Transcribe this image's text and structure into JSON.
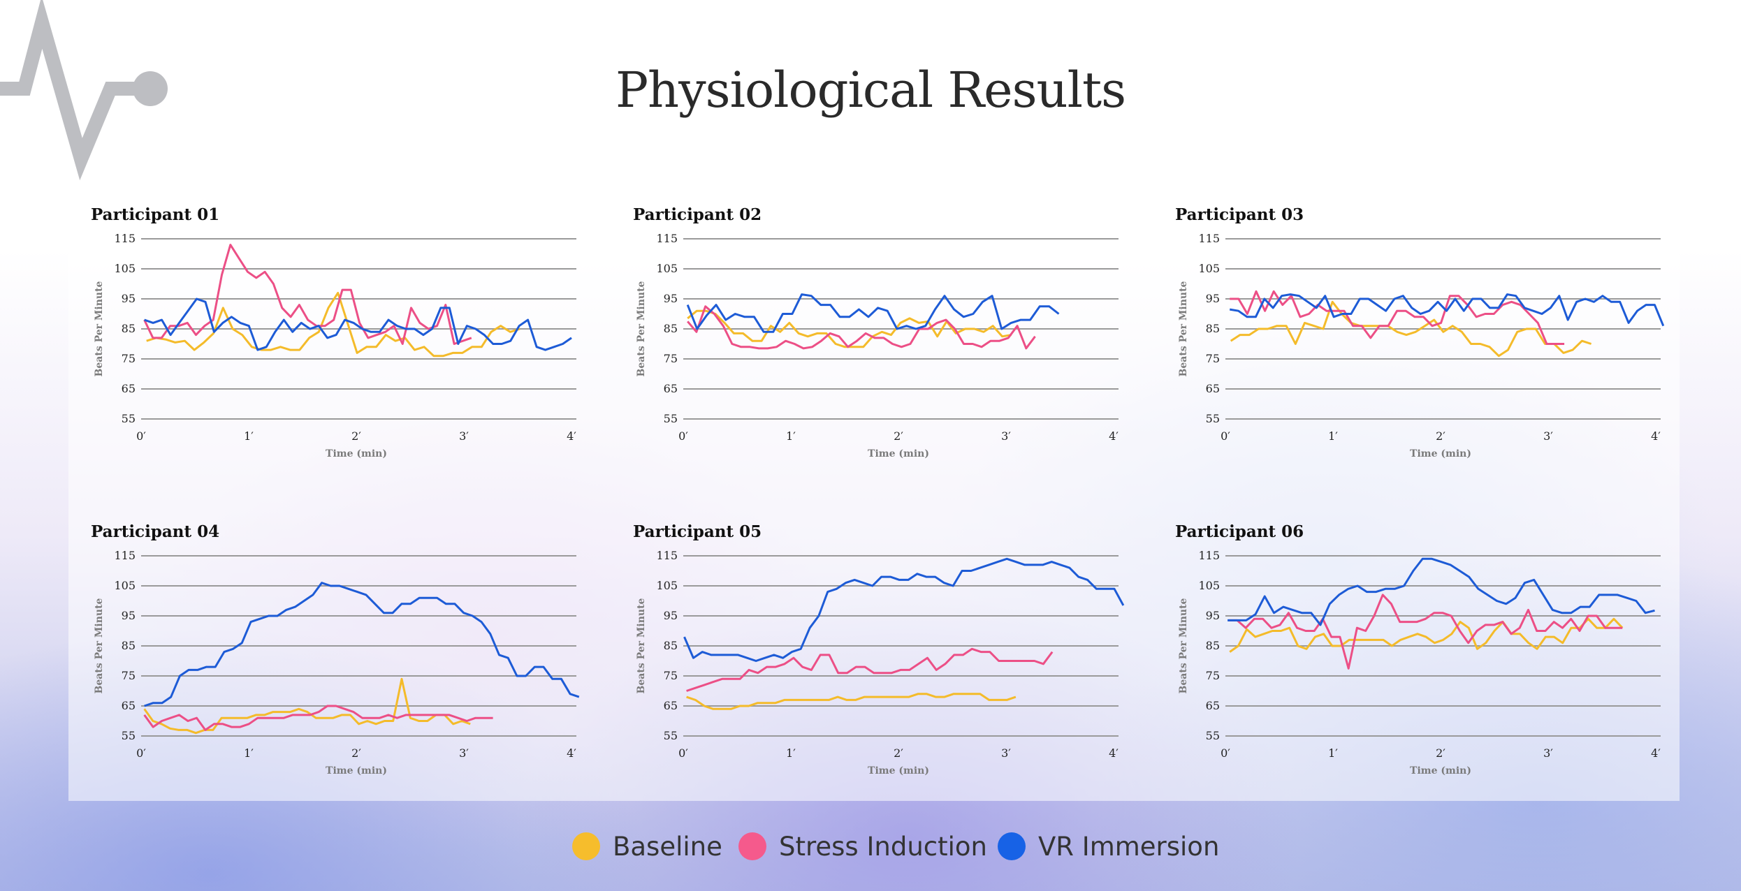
{
  "title": "Physiological Results",
  "colors": {
    "Baseline": "#F4BB2A",
    "Stress Induction": "#EC4F86",
    "VR Immersion": "#1D5BD6",
    "logo": "#BDBEC2"
  },
  "legend": [
    {
      "label": "Baseline",
      "color": "#F6BD2C"
    },
    {
      "label": "Stress Induction",
      "color": "#F55A8C"
    },
    {
      "label": "VR Immersion",
      "color": "#1762E6"
    }
  ],
  "chart_data": [
    {
      "type": "line",
      "title": "Participant 01",
      "xlabel": "Time (min)",
      "ylabel": "Beats Per Minute",
      "xlim": [
        0,
        4
      ],
      "ylim": [
        55,
        115
      ],
      "yticks": [
        55,
        65,
        75,
        85,
        95,
        105,
        115
      ],
      "xticks": [
        "0′",
        "1′",
        "2′",
        "3′",
        "4′"
      ],
      "grid": "horizontal",
      "series": [
        {
          "name": "Baseline",
          "t_range": [
            0.05,
            3.52
          ],
          "bpm": [
            81,
            82,
            81.5,
            80.5,
            81,
            78,
            80.5,
            83.5,
            92,
            85,
            83,
            79,
            78,
            78,
            79,
            78,
            78,
            82,
            84,
            92,
            97,
            87,
            77,
            79,
            79,
            83,
            81,
            82,
            78,
            79,
            76,
            76,
            77,
            77,
            79,
            79,
            84,
            86,
            84,
            85
          ]
        },
        {
          "name": "Stress Induction",
          "t_range": [
            0.03,
            3.07
          ],
          "bpm": [
            88,
            82,
            82,
            86,
            86,
            87,
            83,
            86,
            88,
            103,
            113,
            108.5,
            104,
            102,
            104,
            100,
            92,
            89,
            93,
            88,
            86,
            86,
            88,
            98,
            98,
            87,
            82,
            83,
            84,
            86,
            80,
            92,
            87,
            85,
            86,
            93,
            80,
            81,
            82
          ]
        },
        {
          "name": "VR Immersion",
          "t_range": [
            0.03,
            4.0
          ],
          "bpm": [
            88,
            87,
            88,
            83,
            87,
            91,
            95,
            94,
            84,
            87,
            89,
            87,
            86,
            78,
            79,
            84,
            88,
            84,
            87,
            85,
            86,
            82,
            83,
            88,
            87,
            85,
            84,
            84,
            88,
            86,
            85,
            85,
            83,
            85,
            92,
            92,
            80,
            86,
            85,
            83,
            80,
            80,
            81,
            86,
            88,
            79,
            78,
            79,
            80,
            82
          ]
        }
      ]
    },
    {
      "type": "line",
      "title": "Participant 02",
      "xlabel": "Time (min)",
      "ylabel": "Beats Per Minute",
      "xlim": [
        0,
        4
      ],
      "ylim": [
        55,
        115
      ],
      "yticks": [
        55,
        65,
        75,
        85,
        95,
        105,
        115
      ],
      "xticks": [
        "0′",
        "1′",
        "2′",
        "3′",
        "4′"
      ],
      "grid": "horizontal",
      "series": [
        {
          "name": "Baseline",
          "t_range": [
            0.04,
            3.05
          ],
          "bpm": [
            88.5,
            91,
            91,
            90,
            87,
            83.5,
            83.5,
            81,
            81,
            86,
            84,
            87,
            83.5,
            82.5,
            83.5,
            83.5,
            80,
            79,
            79,
            79,
            82.5,
            84,
            83,
            87,
            88.5,
            87,
            87.5,
            82.5,
            87.5,
            83.5,
            85,
            85,
            84,
            86,
            82.5,
            83
          ]
        },
        {
          "name": "Stress Induction",
          "t_range": [
            0.04,
            3.27
          ],
          "bpm": [
            87.5,
            84,
            92.5,
            90,
            86,
            80,
            79,
            79,
            78.5,
            78.5,
            79,
            81,
            80,
            78.5,
            79,
            81,
            83.5,
            82.5,
            79,
            81,
            83.5,
            82,
            82,
            80,
            79,
            80,
            85,
            85,
            87,
            88,
            85,
            80,
            80,
            79,
            81,
            81,
            82,
            86,
            78.5,
            82.5
          ]
        },
        {
          "name": "VR Immersion",
          "t_range": [
            0.04,
            3.49
          ],
          "bpm": [
            93,
            85,
            89.5,
            93,
            88,
            90,
            89,
            89,
            84,
            84,
            90,
            90,
            96.5,
            96,
            93,
            93,
            89,
            89,
            91.5,
            89,
            92,
            91,
            85,
            86,
            85,
            86,
            91.5,
            96,
            91.5,
            89,
            90,
            94,
            96,
            85,
            87,
            88,
            88,
            92.5,
            92.5,
            90
          ]
        }
      ]
    },
    {
      "type": "line",
      "title": "Participant 03",
      "xlabel": "Time (min)",
      "ylabel": "Beats Per Minute",
      "xlim": [
        0,
        4
      ],
      "ylim": [
        55,
        115
      ],
      "yticks": [
        55,
        65,
        75,
        85,
        95,
        105,
        115
      ],
      "xticks": [
        "0′",
        "1′",
        "2′",
        "3′",
        "4′"
      ],
      "grid": "horizontal",
      "series": [
        {
          "name": "Baseline",
          "t_range": [
            0.05,
            3.4
          ],
          "bpm": [
            81,
            83,
            83,
            85,
            85,
            86,
            86,
            80,
            87,
            86,
            85,
            94,
            90,
            87,
            86,
            86,
            86,
            86,
            84,
            83,
            84,
            86,
            88,
            84,
            86,
            84,
            80,
            80,
            79,
            76,
            78,
            84,
            85,
            85,
            80,
            80,
            77,
            78,
            81,
            80
          ]
        },
        {
          "name": "Stress Induction",
          "t_range": [
            0.04,
            3.15
          ],
          "bpm": [
            95,
            95,
            90,
            97.5,
            91,
            97.5,
            93,
            96,
            89,
            90,
            93,
            91,
            91,
            91,
            86,
            86,
            82,
            86,
            86,
            91,
            91,
            89,
            89,
            86,
            87,
            96,
            96,
            93,
            89,
            90,
            90,
            93,
            94,
            93,
            90,
            87,
            80,
            80,
            80
          ]
        },
        {
          "name": "VR Immersion",
          "t_range": [
            0.04,
            4.07
          ],
          "bpm": [
            91.5,
            91,
            89,
            89,
            95,
            92,
            96,
            96.5,
            96,
            94,
            92,
            96,
            89,
            90,
            90,
            95,
            95,
            93,
            91,
            95,
            96,
            92,
            90,
            91,
            94,
            91,
            95,
            91,
            95,
            95,
            92,
            92,
            96.5,
            96,
            92,
            91,
            90,
            92,
            96,
            88,
            94,
            95,
            94,
            96,
            94,
            94,
            87,
            91,
            93,
            93,
            86
          ]
        }
      ]
    },
    {
      "type": "line",
      "title": "Participant 04",
      "xlabel": "Time (min)",
      "ylabel": "Beats Per Minute",
      "xlim": [
        0,
        4
      ],
      "ylim": [
        55,
        115
      ],
      "yticks": [
        55,
        65,
        75,
        85,
        95,
        105,
        115
      ],
      "xticks": [
        "0′",
        "1′",
        "2′",
        "3′",
        "4′"
      ],
      "grid": "horizontal",
      "series": [
        {
          "name": "Baseline",
          "t_range": [
            0.03,
            3.06
          ],
          "bpm": [
            64,
            60,
            59,
            57.5,
            57,
            57,
            56,
            57,
            57,
            61,
            61,
            61,
            61,
            62,
            62,
            63,
            63,
            63,
            64,
            63,
            61,
            61,
            61,
            62,
            62,
            59,
            60,
            59,
            60,
            60,
            74,
            61,
            60,
            60,
            62,
            62,
            59,
            60,
            59
          ]
        },
        {
          "name": "Stress Induction",
          "t_range": [
            0.03,
            3.27
          ],
          "bpm": [
            62,
            58,
            60,
            61,
            62,
            60,
            61,
            57,
            59,
            59,
            58,
            58,
            59,
            61,
            61,
            61,
            61,
            62,
            62,
            62,
            63,
            65,
            65,
            64,
            63,
            61,
            61,
            61,
            62,
            61,
            62,
            62,
            62,
            62,
            62,
            62,
            61,
            60,
            61,
            61,
            61
          ]
        },
        {
          "name": "VR Immersion",
          "t_range": [
            0.03,
            4.07
          ],
          "bpm": [
            65,
            66,
            66,
            68,
            75,
            77,
            77,
            78,
            78,
            83,
            84,
            86,
            93,
            94,
            95,
            95,
            97,
            98,
            100,
            102,
            106,
            105,
            105,
            104,
            103,
            102,
            99,
            96,
            96,
            99,
            99,
            101,
            101,
            101,
            99,
            99,
            96,
            95,
            93,
            89,
            82,
            81,
            75,
            75,
            78,
            78,
            74,
            74,
            69,
            68
          ]
        }
      ]
    },
    {
      "type": "line",
      "title": "Participant 05",
      "xlabel": "Time (min)",
      "ylabel": "Beats Per Minute",
      "xlim": [
        0,
        4
      ],
      "ylim": [
        55,
        115
      ],
      "yticks": [
        55,
        65,
        75,
        85,
        95,
        105,
        115
      ],
      "xticks": [
        "0′",
        "1′",
        "2′",
        "3′",
        "4′"
      ],
      "grid": "horizontal",
      "series": [
        {
          "name": "Baseline",
          "t_range": [
            0.03,
            3.09
          ],
          "bpm": [
            68,
            67,
            65,
            64,
            64,
            64,
            65,
            65,
            66,
            66,
            66,
            67,
            67,
            67,
            67,
            67,
            67,
            68,
            67,
            67,
            68,
            68,
            68,
            68,
            68,
            68,
            69,
            69,
            68,
            68,
            69,
            69,
            69,
            69,
            67,
            67,
            67,
            68
          ]
        },
        {
          "name": "Stress Induction",
          "t_range": [
            0.03,
            3.43
          ],
          "bpm": [
            70,
            71,
            72,
            73,
            74,
            74,
            74,
            77,
            76,
            78,
            78,
            79,
            81,
            78,
            77,
            82,
            82,
            76,
            76,
            78,
            78,
            76,
            76,
            76,
            77,
            77,
            79,
            81,
            77,
            79,
            82,
            82,
            84,
            83,
            83,
            80,
            80,
            80,
            80,
            80,
            79,
            83
          ]
        },
        {
          "name": "VR Immersion",
          "t_range": [
            0.01,
            4.09
          ],
          "bpm": [
            88,
            81,
            83,
            82,
            82,
            82,
            82,
            81,
            80,
            81,
            82,
            81,
            83,
            84,
            91,
            95,
            103,
            104,
            106,
            107,
            106,
            105,
            108,
            108,
            107,
            107,
            109,
            108,
            108,
            106,
            105,
            110,
            110,
            111,
            112,
            113,
            114,
            113,
            112,
            112,
            112,
            113,
            112,
            111,
            108,
            107,
            104,
            104,
            104,
            98.5
          ]
        }
      ]
    },
    {
      "type": "line",
      "title": "Participant 06",
      "xlabel": "Time (min)",
      "ylabel": "Beats Per Minute",
      "xlim": [
        0,
        4
      ],
      "ylim": [
        55,
        115
      ],
      "yticks": [
        55,
        65,
        75,
        85,
        95,
        105,
        115
      ],
      "xticks": [
        "0′",
        "1′",
        "2′",
        "3′",
        "4′"
      ],
      "grid": "horizontal",
      "series": [
        {
          "name": "Baseline",
          "t_range": [
            0.04,
            3.69
          ],
          "bpm": [
            83,
            85,
            90.5,
            88,
            89,
            90,
            90,
            91,
            85,
            84,
            88,
            89,
            85,
            85,
            87,
            87,
            87,
            87,
            87,
            85,
            87,
            88,
            89,
            88,
            86,
            87,
            89,
            93,
            91,
            84,
            86,
            90,
            93,
            89,
            89,
            86,
            84,
            88,
            88,
            86,
            91,
            91,
            94,
            91,
            91,
            94,
            91
          ]
        },
        {
          "name": "Stress Induction",
          "t_range": [
            0.03,
            3.69
          ],
          "bpm": [
            93.5,
            93.5,
            91,
            94,
            94,
            91,
            92,
            96,
            91,
            90,
            90,
            94,
            88,
            88,
            77.5,
            91,
            90,
            95,
            102,
            99,
            93,
            93,
            93,
            94,
            96,
            96,
            95,
            90,
            86,
            90,
            92,
            92,
            93,
            89,
            91,
            97,
            90,
            90,
            93,
            91,
            94,
            90,
            95,
            95,
            91,
            91,
            91
          ]
        },
        {
          "name": "VR Immersion",
          "t_range": [
            0.02,
            3.99
          ],
          "bpm": [
            93.5,
            93.5,
            93.5,
            95.5,
            101.5,
            96,
            98,
            97,
            96,
            96,
            92,
            99,
            102,
            104,
            105,
            103,
            103,
            104,
            104,
            105,
            110,
            114,
            114,
            113,
            112,
            110,
            108,
            104,
            102,
            100,
            99,
            101,
            106,
            107,
            102,
            97,
            96,
            96,
            98,
            98,
            102,
            102,
            102,
            101,
            100,
            96,
            96.8
          ]
        }
      ]
    }
  ]
}
